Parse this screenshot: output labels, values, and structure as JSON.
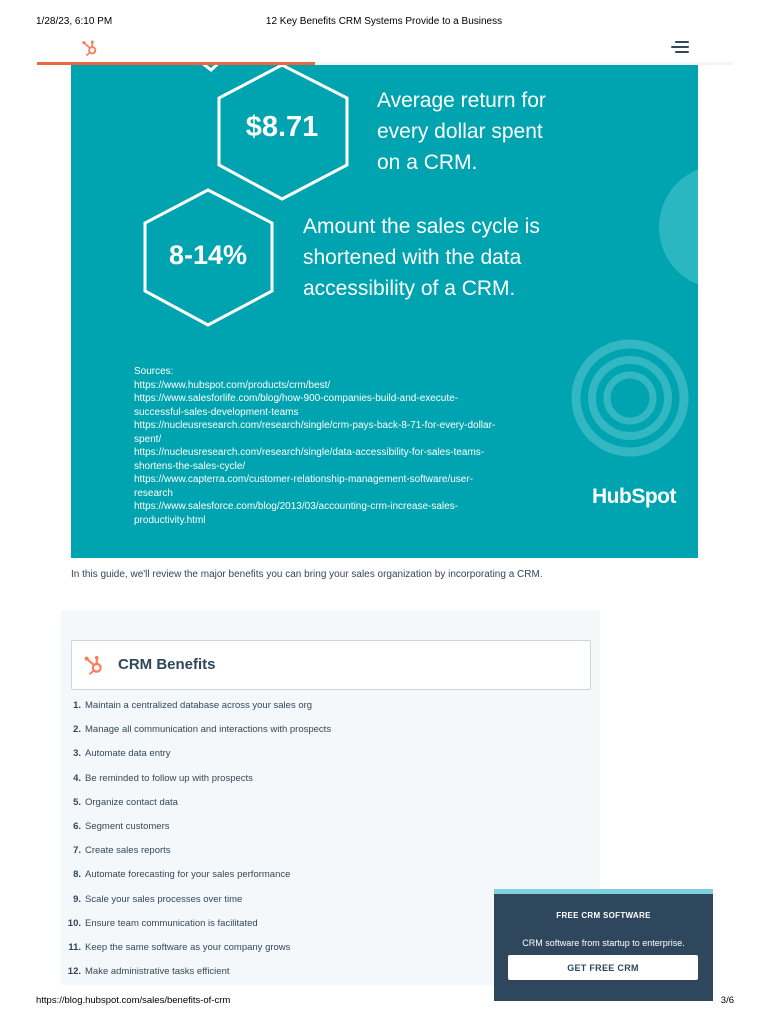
{
  "print_header": {
    "datetime": "1/28/23, 6:10 PM",
    "title": "12 Key Benefits CRM Systems Provide to a Business"
  },
  "nav": {
    "logo_icon": "hubspot-sprocket-icon",
    "menu_icon": "hamburger-menu-icon",
    "reading_progress": 0.4
  },
  "infographic": {
    "stats": [
      {
        "value": "$8.71",
        "lines": [
          "Average return for",
          "every dollar spent",
          "on a CRM."
        ]
      },
      {
        "value": "8-14%",
        "lines": [
          "Amount the sales cycle is",
          "shortened with the data",
          "accessibility of a CRM."
        ]
      }
    ],
    "sources_label": "Sources:",
    "sources": [
      "https://www.hubspot.com/products/crm/best/",
      "https://www.salesforlife.com/blog/how-900-companies-build-and-execute-\nsuccessful-sales-development-teams",
      "https://nucleusresearch.com/research/single/crm-pays-back-8-71-for-every-dollar-\nspent/",
      "https://nucleusresearch.com/research/single/data-accessibility-for-sales-teams-\nshortens-the-sales-cycle/",
      "https://www.capterra.com/customer-relationship-management-software/user-\nresearch",
      "https://www.salesforce.com/blog/2013/03/accounting-crm-increase-sales-\nproductivity.html"
    ],
    "brand": "HubSpot",
    "colors": {
      "background": "#00a4b0",
      "accent": "#ffffff"
    }
  },
  "intro": "In this guide, we'll review the major benefits you can bring your sales organization by incorporating a CRM.",
  "toc": {
    "heading": "CRM Benefits",
    "logo_icon": "hubspot-sprocket-icon",
    "items": [
      {
        "num": "1.",
        "label": "Maintain a centralized database across your sales org"
      },
      {
        "num": "2.",
        "label": "Manage all communication and interactions with prospects"
      },
      {
        "num": "3.",
        "label": "Automate data entry"
      },
      {
        "num": "4.",
        "label": "Be reminded to follow up with prospects"
      },
      {
        "num": "5.",
        "label": "Organize contact data"
      },
      {
        "num": "6.",
        "label": "Segment customers"
      },
      {
        "num": "7.",
        "label": "Create sales reports"
      },
      {
        "num": "8.",
        "label": "Automate forecasting for your sales performance"
      },
      {
        "num": "9.",
        "label": "Scale your sales processes over time"
      },
      {
        "num": "10.",
        "label": "Ensure team communication is facilitated"
      },
      {
        "num": "11.",
        "label": "Keep the same software as your company grows"
      },
      {
        "num": "12.",
        "label": "Make administrative tasks efficient"
      }
    ]
  },
  "cta": {
    "title": "FREE CRM SOFTWARE",
    "subtitle": "CRM software from startup to enterprise.",
    "button": "GET FREE CRM",
    "colors": {
      "background": "#2e475d",
      "top_border": "#7fd1de"
    }
  },
  "print_footer": {
    "url": "https://blog.hubspot.com/sales/benefits-of-crm",
    "page": "3/6"
  },
  "colors": {
    "brand_orange": "#ff7a59",
    "progress": "#e8693b",
    "text": "#33475b"
  }
}
